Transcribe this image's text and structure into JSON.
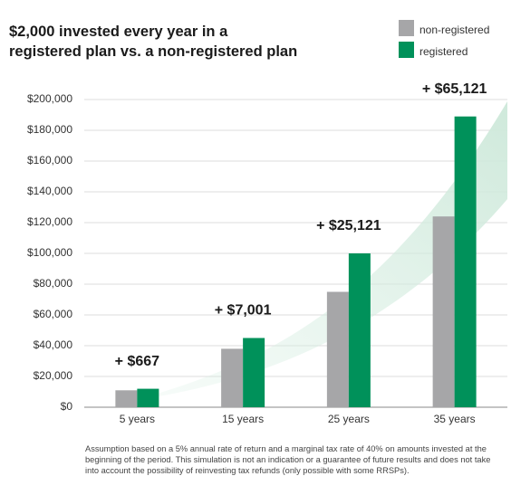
{
  "chart_data": {
    "type": "bar",
    "title": "$2,000 invested every year in a registered plan vs. a non-registered plan",
    "categories": [
      "5 years",
      "15 years",
      "25 years",
      "35 years"
    ],
    "series": [
      {
        "name": "non-registered",
        "color": "#a6a6a8",
        "values": [
          11000,
          38000,
          75000,
          124000
        ]
      },
      {
        "name": "registered",
        "color": "#00915a",
        "values": [
          12000,
          45000,
          100000,
          189000
        ]
      }
    ],
    "annotations": [
      "+ $667",
      "+ $7,001",
      "+ $25,121",
      "+ $65,121"
    ],
    "ylim": [
      0,
      200000
    ],
    "yticks": [
      {
        "value": 0,
        "label": "$0"
      },
      {
        "value": 20000,
        "label": "$20,000"
      },
      {
        "value": 40000,
        "label": "$40,000"
      },
      {
        "value": 60000,
        "label": "$60,000"
      },
      {
        "value": 80000,
        "label": "$80,000"
      },
      {
        "value": 100000,
        "label": "$100,000"
      },
      {
        "value": 120000,
        "label": "$120,000"
      },
      {
        "value": 140000,
        "label": "$140,000"
      },
      {
        "value": 160000,
        "label": "$160,000"
      },
      {
        "value": 180000,
        "label": "$180,000"
      },
      {
        "value": 200000,
        "label": "$200,000"
      }
    ],
    "grid": true,
    "footnote": "Assumption based on a 5% annual rate of return and a marginal tax rate of 40% on amounts invested at the beginning of the period. This simulation is not an indication or a guarantee of future results and does not take into account the possibility of reinvesting tax refunds (only possible with some RRSPs)."
  }
}
